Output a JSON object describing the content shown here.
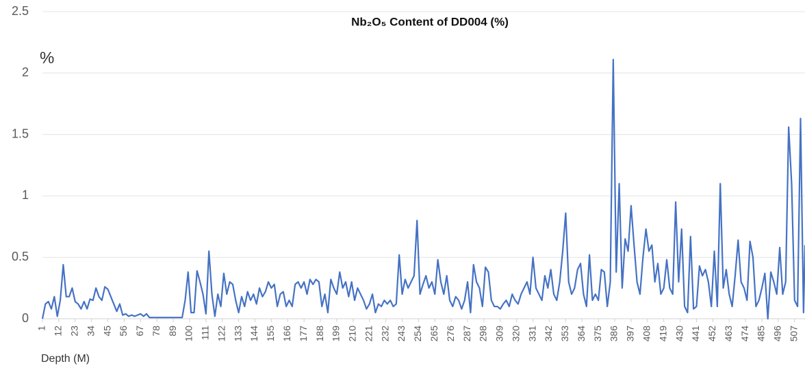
{
  "chart_data": {
    "type": "line",
    "title": "Nb₂O₅ Content of DD004 (%)",
    "annotation": "%",
    "x_label": "Depth (M)",
    "color": "#4472c4",
    "grid": true,
    "xlim": [
      1,
      514
    ],
    "ylim": [
      0,
      2.5
    ],
    "yticks": [
      0,
      0.5,
      1,
      1.5,
      2,
      2.5
    ],
    "xticks": [
      1,
      12,
      23,
      34,
      45,
      56,
      67,
      78,
      89,
      100,
      111,
      122,
      133,
      144,
      155,
      166,
      177,
      188,
      199,
      210,
      221,
      232,
      243,
      254,
      265,
      276,
      287,
      298,
      309,
      320,
      331,
      342,
      353,
      364,
      375,
      386,
      397,
      408,
      419,
      430,
      441,
      452,
      463,
      474,
      485,
      496,
      507
    ],
    "x": [
      1,
      3,
      5,
      7,
      9,
      11,
      13,
      15,
      17,
      19,
      21,
      23,
      25,
      27,
      29,
      31,
      33,
      35,
      37,
      39,
      41,
      43,
      45,
      47,
      49,
      51,
      53,
      55,
      57,
      59,
      61,
      63,
      65,
      67,
      69,
      71,
      73,
      75,
      77,
      79,
      81,
      83,
      85,
      87,
      89,
      91,
      93,
      95,
      97,
      99,
      101,
      103,
      105,
      107,
      109,
      111,
      113,
      115,
      117,
      119,
      121,
      123,
      125,
      127,
      129,
      131,
      133,
      135,
      137,
      139,
      141,
      143,
      145,
      147,
      149,
      151,
      153,
      155,
      157,
      159,
      161,
      163,
      165,
      167,
      169,
      171,
      173,
      175,
      177,
      179,
      181,
      183,
      185,
      187,
      189,
      191,
      193,
      195,
      197,
      199,
      201,
      203,
      205,
      207,
      209,
      211,
      213,
      215,
      217,
      219,
      221,
      223,
      225,
      227,
      229,
      231,
      233,
      235,
      237,
      239,
      241,
      243,
      245,
      247,
      249,
      251,
      253,
      255,
      257,
      259,
      261,
      263,
      265,
      267,
      269,
      271,
      273,
      275,
      277,
      279,
      281,
      283,
      285,
      287,
      289,
      291,
      293,
      295,
      297,
      299,
      301,
      303,
      305,
      307,
      309,
      311,
      313,
      315,
      317,
      319,
      321,
      323,
      325,
      327,
      329,
      331,
      333,
      335,
      337,
      339,
      341,
      343,
      345,
      347,
      349,
      351,
      353,
      355,
      357,
      359,
      361,
      363,
      365,
      367,
      369,
      371,
      373,
      375,
      377,
      379,
      381,
      383,
      385,
      387,
      389,
      391,
      393,
      395,
      397,
      399,
      401,
      403,
      405,
      407,
      409,
      411,
      413,
      415,
      417,
      419,
      421,
      423,
      425,
      427,
      429,
      431,
      433,
      435,
      437,
      439,
      441,
      443,
      445,
      447,
      449,
      451,
      453,
      455,
      457,
      459,
      461,
      463,
      465,
      467,
      469,
      471,
      473,
      475,
      477,
      479,
      481,
      483,
      485,
      487,
      489,
      491,
      493,
      495,
      497,
      499,
      501,
      503,
      505,
      507,
      509,
      511,
      513,
      514
    ],
    "values": [
      0,
      0.12,
      0.14,
      0.08,
      0.18,
      0.02,
      0.15,
      0.44,
      0.18,
      0.18,
      0.25,
      0.14,
      0.12,
      0.08,
      0.14,
      0.08,
      0.16,
      0.15,
      0.25,
      0.18,
      0.15,
      0.26,
      0.24,
      0.18,
      0.12,
      0.06,
      0.12,
      0.03,
      0.04,
      0.02,
      0.03,
      0.02,
      0.03,
      0.04,
      0.02,
      0.04,
      0.01,
      0.01,
      0.01,
      0.01,
      0.01,
      0.01,
      0.01,
      0.01,
      0.01,
      0.01,
      0.01,
      0.01,
      0.15,
      0.38,
      0.05,
      0.05,
      0.39,
      0.3,
      0.2,
      0.04,
      0.55,
      0.2,
      0.02,
      0.2,
      0.1,
      0.37,
      0.2,
      0.3,
      0.28,
      0.15,
      0.05,
      0.18,
      0.1,
      0.22,
      0.15,
      0.2,
      0.12,
      0.25,
      0.18,
      0.22,
      0.3,
      0.25,
      0.28,
      0.1,
      0.2,
      0.22,
      0.1,
      0.15,
      0.1,
      0.28,
      0.3,
      0.25,
      0.3,
      0.2,
      0.32,
      0.28,
      0.32,
      0.3,
      0.1,
      0.2,
      0.05,
      0.32,
      0.25,
      0.2,
      0.38,
      0.25,
      0.3,
      0.18,
      0.3,
      0.15,
      0.25,
      0.2,
      0.15,
      0.08,
      0.12,
      0.2,
      0.05,
      0.12,
      0.1,
      0.15,
      0.12,
      0.15,
      0.1,
      0.12,
      0.52,
      0.2,
      0.32,
      0.25,
      0.3,
      0.35,
      0.8,
      0.2,
      0.28,
      0.35,
      0.25,
      0.3,
      0.2,
      0.48,
      0.3,
      0.2,
      0.35,
      0.15,
      0.1,
      0.18,
      0.15,
      0.08,
      0.15,
      0.3,
      0.05,
      0.44,
      0.3,
      0.25,
      0.1,
      0.42,
      0.38,
      0.15,
      0.1,
      0.1,
      0.08,
      0.12,
      0.15,
      0.1,
      0.2,
      0.15,
      0.12,
      0.2,
      0.25,
      0.3,
      0.2,
      0.5,
      0.25,
      0.2,
      0.15,
      0.35,
      0.25,
      0.4,
      0.2,
      0.15,
      0.3,
      0.55,
      0.86,
      0.3,
      0.2,
      0.25,
      0.4,
      0.45,
      0.2,
      0.1,
      0.52,
      0.15,
      0.2,
      0.15,
      0.4,
      0.38,
      0.1,
      0.3,
      2.11,
      0.38,
      1.1,
      0.25,
      0.65,
      0.55,
      0.92,
      0.6,
      0.3,
      0.2,
      0.5,
      0.73,
      0.55,
      0.6,
      0.3,
      0.45,
      0.2,
      0.25,
      0.48,
      0.25,
      0.2,
      0.95,
      0.3,
      0.73,
      0.1,
      0.05,
      0.67,
      0.08,
      0.1,
      0.43,
      0.35,
      0.4,
      0.3,
      0.1,
      0.55,
      0.1,
      1.1,
      0.25,
      0.4,
      0.2,
      0.1,
      0.35,
      0.64,
      0.3,
      0.25,
      0.15,
      0.63,
      0.5,
      0.1,
      0.15,
      0.25,
      0.37,
      0,
      0.38,
      0.3,
      0.2,
      0.58,
      0.2,
      0.3,
      1.56,
      1.1,
      0.15,
      0.1,
      1.63,
      0.05,
      0.6
    ]
  }
}
